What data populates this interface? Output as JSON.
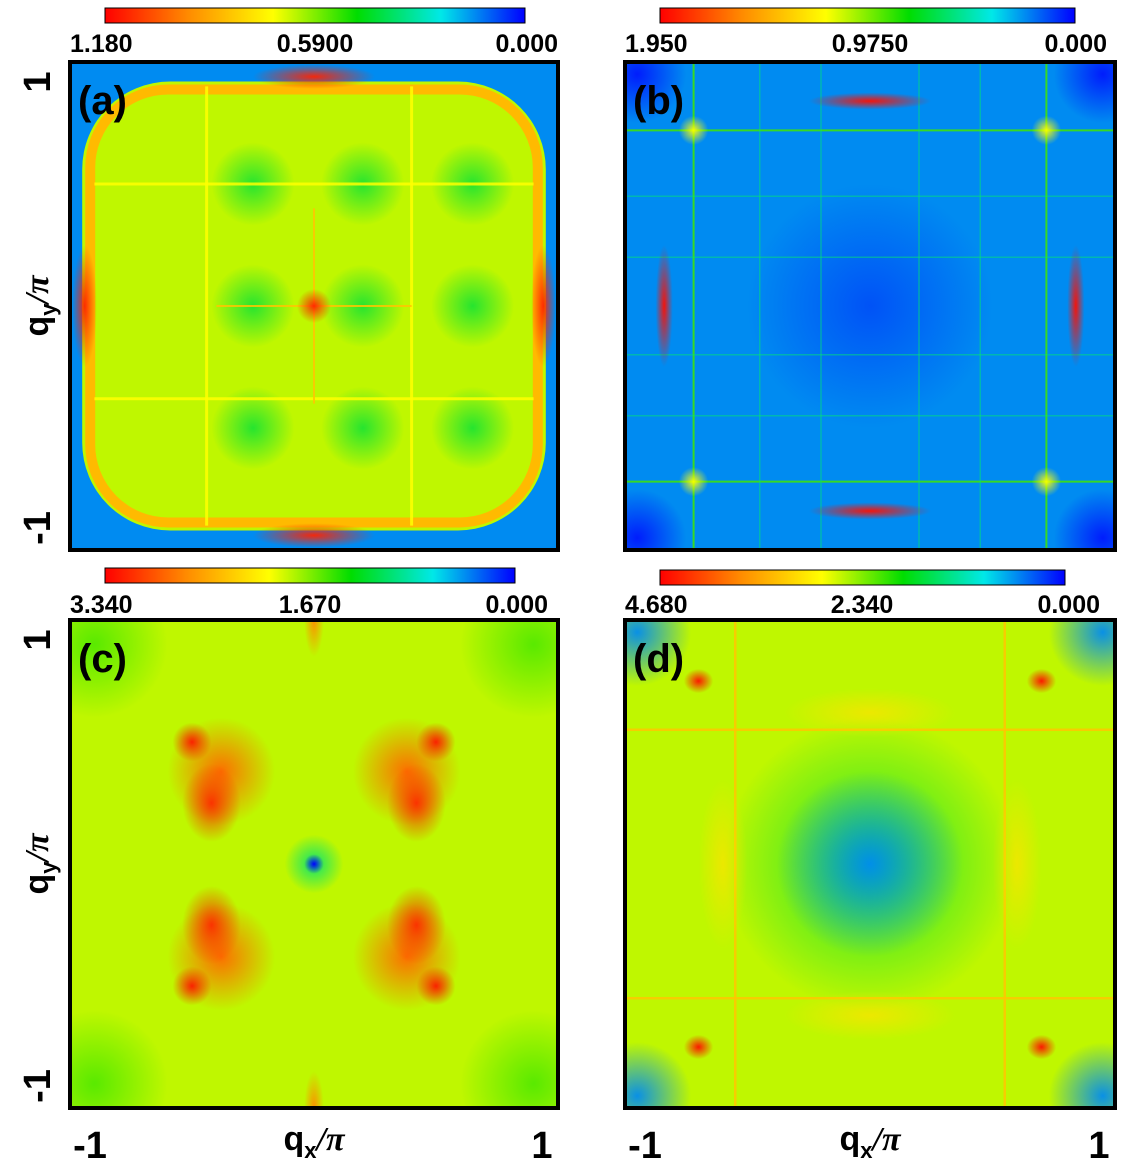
{
  "chart_data": [
    {
      "type": "heatmap",
      "panel_label": "(a)",
      "colorbar": {
        "max_label": "1.180",
        "mid_label": "0.5900",
        "min_label": "0.000",
        "range": [
          0,
          1.18
        ]
      },
      "xlim": [
        -1,
        1
      ],
      "ylim": [
        -1,
        1
      ],
      "yticks": [
        "1",
        "-1"
      ],
      "xticks": [],
      "ylabel": {
        "main": "q",
        "sub": "y",
        "tail": "/π"
      },
      "xlabel": null
    },
    {
      "type": "heatmap",
      "panel_label": "(b)",
      "colorbar": {
        "max_label": "1.950",
        "mid_label": "0.9750",
        "min_label": "0.000",
        "range": [
          0,
          1.95
        ]
      },
      "xlim": [
        -1,
        1
      ],
      "ylim": [
        -1,
        1
      ],
      "yticks": [],
      "xticks": [],
      "ylabel": null,
      "xlabel": null
    },
    {
      "type": "heatmap",
      "panel_label": "(c)",
      "colorbar": {
        "max_label": "3.340",
        "mid_label": "1.670",
        "min_label": "0.000",
        "range": [
          0,
          3.34
        ]
      },
      "xlim": [
        -1,
        1
      ],
      "ylim": [
        -1,
        1
      ],
      "yticks": [
        "1",
        "-1"
      ],
      "xticks": [
        "-1",
        "1"
      ],
      "ylabel": {
        "main": "q",
        "sub": "y",
        "tail": "/π"
      },
      "xlabel": {
        "main": "q",
        "sub": "x",
        "tail": "/π"
      }
    },
    {
      "type": "heatmap",
      "panel_label": "(d)",
      "colorbar": {
        "max_label": "4.680",
        "mid_label": "2.340",
        "min_label": "0.000",
        "range": [
          0,
          4.68
        ]
      },
      "xlim": [
        -1,
        1
      ],
      "ylim": [
        -1,
        1
      ],
      "yticks": [],
      "xticks": [
        "-1",
        "1"
      ],
      "ylabel": null,
      "xlabel": {
        "main": "q",
        "sub": "x",
        "tail": "/π"
      }
    }
  ],
  "colormap": [
    "#ff0000",
    "#ff8c00",
    "#ffff00",
    "#00dd00",
    "#00e8e8",
    "#0000ff"
  ]
}
